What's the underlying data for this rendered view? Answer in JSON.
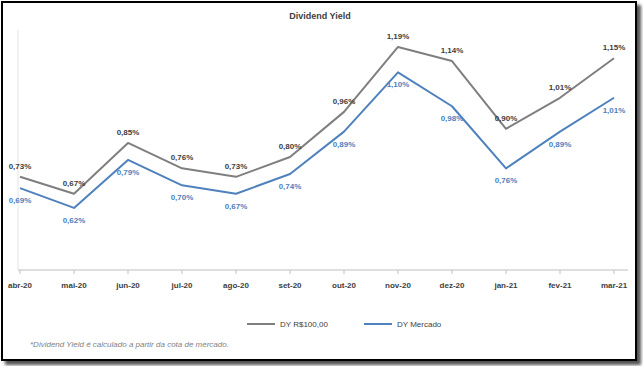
{
  "chart_data": {
    "type": "line",
    "title": "Dividend Yield",
    "categories": [
      "abr-20",
      "mai-20",
      "jun-20",
      "jul-20",
      "ago-20",
      "set-20",
      "out-20",
      "nov-20",
      "dez-20",
      "jan-21",
      "fev-21",
      "mar-21"
    ],
    "series": [
      {
        "name": "DY R$100,00",
        "color": "#7f7f7f",
        "values": [
          0.73,
          0.67,
          0.85,
          0.76,
          0.73,
          0.8,
          0.96,
          1.19,
          1.14,
          0.9,
          1.01,
          1.15
        ],
        "value_labels": [
          "0,73%",
          "0,67%",
          "0,85%",
          "0,76%",
          "0,73%",
          "0,80%",
          "0,96%",
          "1,19%",
          "1,14%",
          "0,90%",
          "1,01%",
          "1,15%"
        ]
      },
      {
        "name": "DY Mercado",
        "color": "#4f81bd",
        "values": [
          0.69,
          0.62,
          0.79,
          0.7,
          0.67,
          0.74,
          0.89,
          1.1,
          0.98,
          0.76,
          0.89,
          1.01
        ],
        "value_labels": [
          "0,69%",
          "0,62%",
          "0,79%",
          "0,70%",
          "0,67%",
          "0,74%",
          "0,89%",
          "1,10%",
          "0,98%",
          "0,76%",
          "0,89%",
          "1,01%"
        ]
      }
    ],
    "ylim": [
      0.4,
      1.25
    ],
    "tick_labels": "x",
    "grid": false,
    "data_labels": true,
    "legend": "bottom",
    "footnote": "*Dividend Yield é calculado a partir da cota de mercado."
  }
}
